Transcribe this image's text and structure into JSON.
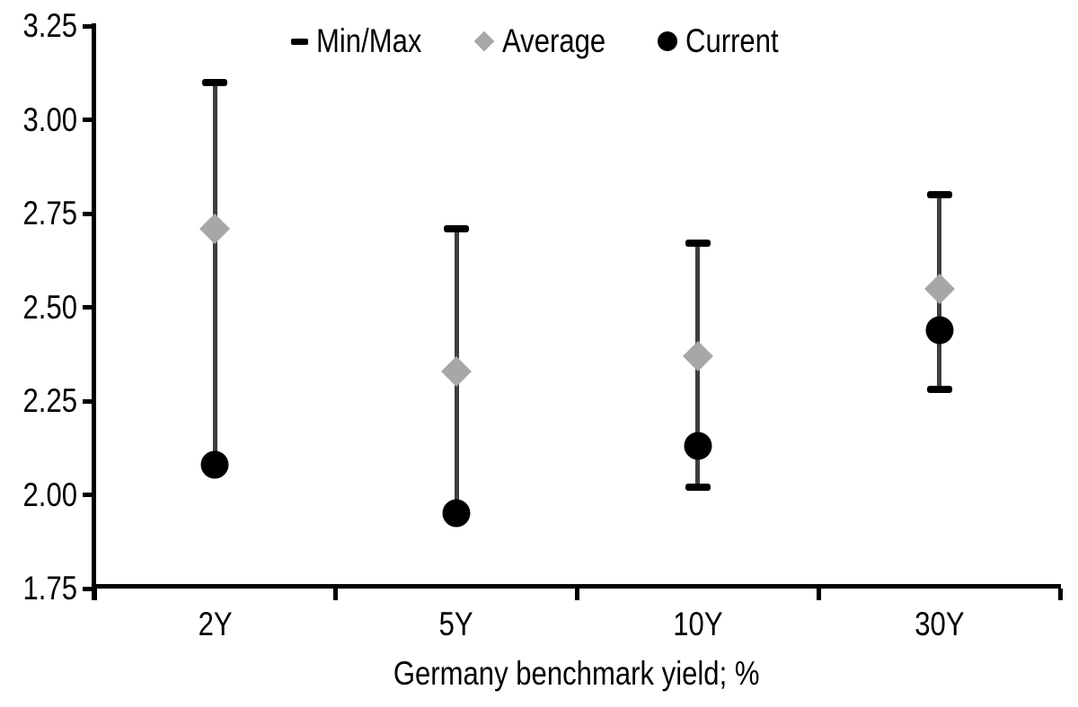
{
  "legend": {
    "items": [
      {
        "label": "Min/Max",
        "marker": "dash"
      },
      {
        "label": "Average",
        "marker": "diamond"
      },
      {
        "label": "Current",
        "marker": "circle"
      }
    ]
  },
  "colors": {
    "range_line": "#3E3E3E",
    "cap": "#000000",
    "average_marker": "#A7A7A7",
    "current_marker": "#000000",
    "axis": "#000000",
    "text": "#000000",
    "background": "#FFFFFF"
  },
  "y_axis": {
    "tick_labels": [
      "3.25",
      "3.00",
      "2.75",
      "2.50",
      "2.25",
      "2.00",
      "1.75"
    ],
    "max": 3.25,
    "min": 1.75,
    "step": 0.25
  },
  "x_axis": {
    "categories": [
      "2Y",
      "5Y",
      "10Y",
      "30Y"
    ],
    "title": "Germany benchmark yield; %"
  },
  "chart_data": {
    "type": "scatter",
    "subtype": "min-max-range-with-average-and-current",
    "title": "",
    "xlabel": "Germany benchmark yield; %",
    "ylabel": "",
    "ylim": [
      1.75,
      3.25
    ],
    "ytick_step": 0.25,
    "grid": false,
    "legend_position": "top",
    "categories": [
      "2Y",
      "5Y",
      "10Y",
      "30Y"
    ],
    "series": [
      {
        "name": "Min/Max",
        "role": "range",
        "max": [
          3.1,
          2.71,
          2.67,
          2.8
        ],
        "min": [
          2.08,
          1.95,
          2.02,
          2.28
        ],
        "max_cap_visible": [
          true,
          true,
          true,
          true
        ],
        "min_cap_visible": [
          false,
          false,
          true,
          true
        ]
      },
      {
        "name": "Average",
        "role": "markers",
        "marker": "diamond",
        "values": [
          2.71,
          2.33,
          2.37,
          2.55
        ]
      },
      {
        "name": "Current",
        "role": "markers",
        "marker": "circle",
        "values": [
          2.08,
          1.95,
          2.13,
          2.44
        ]
      }
    ]
  }
}
